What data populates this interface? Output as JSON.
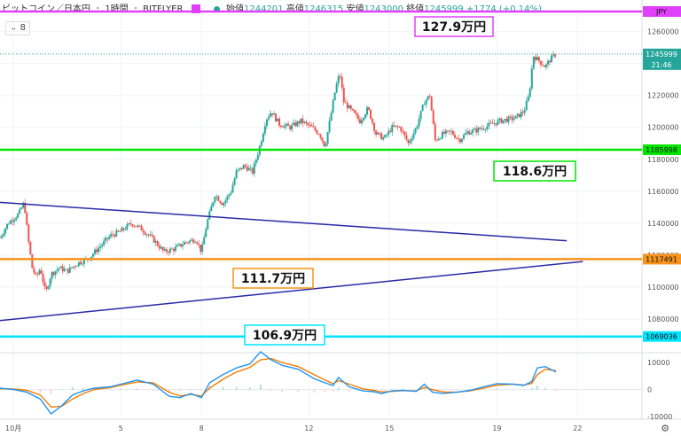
{
  "header": {
    "symbol": "ビットコイン／日本円",
    "interval": "1時間",
    "exchange": "BITFLYER",
    "open_label": "始値",
    "open": "1244201",
    "high_label": "高値",
    "high": "1246315",
    "low_label": "安値",
    "low": "1243000",
    "close_label": "終値",
    "close": "1245999",
    "change": "+1774 (+0.14%)"
  },
  "indicator_toggle": "8",
  "currency_badge": "JPY",
  "chart_data": {
    "type": "candlestick",
    "price_axis": {
      "min": 1060000,
      "max": 1272000,
      "ticks": [
        1260000,
        1240000,
        1220000,
        1200000,
        1180000,
        1160000,
        1140000,
        1120000,
        1100000,
        1080000
      ]
    },
    "x_axis": {
      "ticks": [
        {
          "label": "10月",
          "day": 1
        },
        {
          "label": "5",
          "day": 5
        },
        {
          "label": "8",
          "day": 8
        },
        {
          "label": "12",
          "day": 12
        },
        {
          "label": "15",
          "day": 15
        },
        {
          "label": "19",
          "day": 19
        },
        {
          "label": "22",
          "day": 22
        }
      ],
      "start_day": 0.5,
      "end_day": 24.4
    },
    "series_close_path": [
      [
        0.5,
        1131000
      ],
      [
        0.8,
        1140000
      ],
      [
        1.2,
        1146000
      ],
      [
        1.4,
        1153000
      ],
      [
        1.55,
        1130000
      ],
      [
        1.7,
        1112000
      ],
      [
        1.85,
        1106000
      ],
      [
        2.0,
        1112000
      ],
      [
        2.2,
        1096000
      ],
      [
        2.4,
        1108000
      ],
      [
        2.7,
        1112000
      ],
      [
        3.0,
        1110000
      ],
      [
        3.4,
        1115000
      ],
      [
        3.8,
        1118000
      ],
      [
        4.2,
        1125000
      ],
      [
        4.6,
        1132000
      ],
      [
        5.0,
        1135000
      ],
      [
        5.4,
        1140000
      ],
      [
        5.8,
        1136000
      ],
      [
        6.2,
        1130000
      ],
      [
        6.6,
        1122000
      ],
      [
        7.0,
        1124000
      ],
      [
        7.4,
        1128000
      ],
      [
        7.8,
        1130000
      ],
      [
        8.0,
        1122000
      ],
      [
        8.2,
        1140000
      ],
      [
        8.5,
        1158000
      ],
      [
        8.8,
        1152000
      ],
      [
        9.1,
        1160000
      ],
      [
        9.3,
        1172000
      ],
      [
        9.6,
        1176000
      ],
      [
        9.9,
        1172000
      ],
      [
        10.2,
        1190000
      ],
      [
        10.4,
        1205000
      ],
      [
        10.6,
        1210000
      ],
      [
        10.9,
        1202000
      ],
      [
        11.3,
        1200000
      ],
      [
        11.7,
        1204000
      ],
      [
        12.1,
        1200000
      ],
      [
        12.4,
        1196000
      ],
      [
        12.6,
        1188000
      ],
      [
        12.8,
        1206000
      ],
      [
        13.0,
        1225000
      ],
      [
        13.15,
        1234000
      ],
      [
        13.3,
        1216000
      ],
      [
        13.6,
        1210000
      ],
      [
        13.9,
        1204000
      ],
      [
        14.2,
        1212000
      ],
      [
        14.5,
        1196000
      ],
      [
        14.8,
        1193000
      ],
      [
        15.1,
        1200000
      ],
      [
        15.4,
        1200000
      ],
      [
        15.7,
        1190000
      ],
      [
        16.0,
        1200000
      ],
      [
        16.3,
        1216000
      ],
      [
        16.5,
        1220000
      ],
      [
        16.7,
        1192000
      ],
      [
        17.0,
        1196000
      ],
      [
        17.3,
        1197000
      ],
      [
        17.6,
        1192000
      ],
      [
        17.9,
        1197000
      ],
      [
        18.2,
        1198000
      ],
      [
        18.5,
        1200000
      ],
      [
        18.8,
        1202000
      ],
      [
        19.1,
        1204000
      ],
      [
        19.4,
        1205000
      ],
      [
        19.7,
        1206000
      ],
      [
        20.0,
        1210000
      ],
      [
        20.2,
        1220000
      ],
      [
        20.35,
        1245000
      ],
      [
        20.55,
        1242000
      ],
      [
        20.8,
        1238000
      ],
      [
        21.0,
        1243000
      ],
      [
        21.2,
        1245999
      ]
    ],
    "horizontal_lines": [
      {
        "label": "127.9万円",
        "value": 1279000,
        "color": "#e040fb",
        "axis_label": "JPY"
      },
      {
        "label": "118.6万円",
        "value": 1185998,
        "color": "#00e600",
        "axis_label": "1185998"
      },
      {
        "label": "111.7万円",
        "value": 1117491,
        "color": "#f7931a",
        "axis_label": "1117491"
      },
      {
        "label": "106.9万円",
        "value": 1069036,
        "color": "#00e5ff",
        "axis_label": "1069036"
      }
    ],
    "last_price": {
      "value": 1245999,
      "countdown": "21:46",
      "color": "#26a69a"
    },
    "trend_lines": [
      {
        "from": [
          0.5,
          1153000
        ],
        "to": [
          21.6,
          1129000
        ],
        "color": "#2a2aa8"
      },
      {
        "from": [
          0.5,
          1079000
        ],
        "to": [
          22.2,
          1116000
        ],
        "color": "#2a2aa8"
      }
    ],
    "oscillator": {
      "min": -10000,
      "max": 13000,
      "ticks": [
        10000,
        0,
        -10000
      ],
      "fast": [
        [
          0.5,
          500
        ],
        [
          1.0,
          0
        ],
        [
          1.5,
          -1000
        ],
        [
          2.0,
          -3500
        ],
        [
          2.4,
          -9000
        ],
        [
          2.8,
          -6000
        ],
        [
          3.2,
          -2000
        ],
        [
          3.6,
          -500
        ],
        [
          4.0,
          500
        ],
        [
          4.6,
          1000
        ],
        [
          5.0,
          2000
        ],
        [
          5.6,
          3500
        ],
        [
          6.2,
          2000
        ],
        [
          6.8,
          -2500
        ],
        [
          7.2,
          -3000
        ],
        [
          7.6,
          -1500
        ],
        [
          8.0,
          -3000
        ],
        [
          8.3,
          2500
        ],
        [
          8.8,
          5500
        ],
        [
          9.3,
          8000
        ],
        [
          9.8,
          9500
        ],
        [
          10.2,
          14000
        ],
        [
          10.6,
          11000
        ],
        [
          11.0,
          9000
        ],
        [
          11.6,
          7500
        ],
        [
          12.2,
          4000
        ],
        [
          12.6,
          2500
        ],
        [
          12.9,
          1500
        ],
        [
          13.1,
          4500
        ],
        [
          13.5,
          1000
        ],
        [
          14.0,
          -500
        ],
        [
          14.4,
          -800
        ],
        [
          14.7,
          -1500
        ],
        [
          15.1,
          -500
        ],
        [
          15.5,
          -300
        ],
        [
          16.0,
          -700
        ],
        [
          16.3,
          2000
        ],
        [
          16.6,
          -1000
        ],
        [
          17.0,
          -1500
        ],
        [
          17.5,
          -1000
        ],
        [
          18.0,
          -300
        ],
        [
          18.5,
          1000
        ],
        [
          19.0,
          2200
        ],
        [
          19.6,
          2000
        ],
        [
          20.0,
          1500
        ],
        [
          20.3,
          3000
        ],
        [
          20.5,
          8000
        ],
        [
          20.8,
          8500
        ],
        [
          21.2,
          6500
        ]
      ],
      "slow": [
        [
          0.5,
          300
        ],
        [
          1.0,
          200
        ],
        [
          1.5,
          -300
        ],
        [
          2.0,
          -2000
        ],
        [
          2.4,
          -6500
        ],
        [
          2.8,
          -6200
        ],
        [
          3.2,
          -3500
        ],
        [
          3.6,
          -1500
        ],
        [
          4.0,
          0
        ],
        [
          4.6,
          700
        ],
        [
          5.0,
          1600
        ],
        [
          5.6,
          2800
        ],
        [
          6.2,
          2500
        ],
        [
          6.8,
          -1000
        ],
        [
          7.2,
          -2400
        ],
        [
          7.6,
          -1800
        ],
        [
          8.0,
          -2400
        ],
        [
          8.3,
          500
        ],
        [
          8.8,
          3800
        ],
        [
          9.3,
          6500
        ],
        [
          9.8,
          8200
        ],
        [
          10.2,
          11000
        ],
        [
          10.6,
          11500
        ],
        [
          11.0,
          10000
        ],
        [
          11.6,
          8500
        ],
        [
          12.2,
          5500
        ],
        [
          12.6,
          3500
        ],
        [
          12.9,
          2200
        ],
        [
          13.1,
          3300
        ],
        [
          13.5,
          2000
        ],
        [
          14.0,
          300
        ],
        [
          14.4,
          -300
        ],
        [
          14.7,
          -900
        ],
        [
          15.1,
          -700
        ],
        [
          15.5,
          -400
        ],
        [
          16.0,
          -500
        ],
        [
          16.3,
          800
        ],
        [
          16.6,
          0
        ],
        [
          17.0,
          -900
        ],
        [
          17.5,
          -1000
        ],
        [
          18.0,
          -500
        ],
        [
          18.5,
          500
        ],
        [
          19.0,
          1600
        ],
        [
          19.6,
          2000
        ],
        [
          20.0,
          1700
        ],
        [
          20.3,
          2300
        ],
        [
          20.5,
          5500
        ],
        [
          20.8,
          7500
        ],
        [
          21.2,
          7000
        ]
      ]
    }
  }
}
